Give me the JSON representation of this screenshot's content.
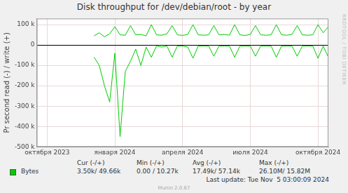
{
  "chart_data": {
    "type": "line",
    "title": "Disk throughput for /dev/debian/root - by year",
    "y_label": "Pr second read (-) / write (+)",
    "categories": [
      null,
      null,
      "октября 2023",
      null,
      null,
      null,
      null,
      null,
      null,
      null,
      null,
      null,
      null,
      null,
      null,
      "января 2024",
      null,
      null,
      null,
      null,
      null,
      null,
      null,
      null,
      null,
      null,
      null,
      null,
      "апреля 2024",
      null,
      null,
      null,
      null,
      null,
      null,
      null,
      null,
      null,
      null,
      null,
      null,
      "июля 2024",
      null,
      null,
      null,
      null,
      null,
      null,
      null,
      null,
      null,
      null,
      null,
      null,
      "октября 2024",
      null,
      null
    ],
    "series": [
      {
        "name": "Bytes",
        "color": "#00cc00",
        "values": [
          null,
          null,
          null,
          null,
          null,
          null,
          null,
          null,
          null,
          null,
          null,
          45000,
          60000,
          40000,
          55000,
          90000,
          50000,
          48000,
          95000,
          50000,
          52000,
          45000,
          100000,
          50000,
          48000,
          55000,
          95000,
          50000,
          47000,
          52000,
          100000,
          50000,
          48000,
          50000,
          95000,
          50000,
          52000,
          48000,
          100000,
          50000,
          47000,
          52000,
          95000,
          50000,
          48000,
          50000,
          100000,
          50000,
          48000,
          52000,
          95000,
          50000,
          48000,
          50000,
          100000,
          60000,
          90000
        ]
      },
      {
        "color": "#00cc00",
        "values": [
          null,
          null,
          null,
          null,
          null,
          null,
          null,
          null,
          null,
          null,
          null,
          -60000,
          -100000,
          -200000,
          -280000,
          -40000,
          -450000,
          -130000,
          -80000,
          -20000,
          -100000,
          -10000,
          -60000,
          -5000,
          -10000,
          -5000,
          -60000,
          -5000,
          -5000,
          -10000,
          -65000,
          -5000,
          -5000,
          -5000,
          -55000,
          -5000,
          -5000,
          -5000,
          -60000,
          -5000,
          -5000,
          -5000,
          -55000,
          -5000,
          -5000,
          -5000,
          -60000,
          -5000,
          -5000,
          -5000,
          -55000,
          -5000,
          -5000,
          -5000,
          -65000,
          -5000,
          -60000
        ]
      }
    ],
    "ylim": [
      -500000,
      130000
    ],
    "yticks": [
      {
        "value": 100000,
        "label": "100 k"
      },
      0,
      {
        "value": -100000,
        "label": "-100 k"
      },
      {
        "value": -200000,
        "label": "-200 k"
      },
      {
        "value": -300000,
        "label": "-300 k"
      },
      {
        "value": -400000,
        "label": "-400 k"
      },
      {
        "value": -500000,
        "label": "-500 k"
      }
    ],
    "grid": true,
    "legend_table": {
      "columns": [
        "Cur (-/+)",
        "Min (-/+)",
        "Avg (-/+)",
        "Max (-/+)"
      ],
      "rows": [
        [
          "3.50k/ 49.66k",
          "0.00 / 10.27k",
          "17.49k/ 57.14k",
          "26.10M/ 15.82M"
        ]
      ]
    },
    "last_update": "Last update: Tue Nov  5 03:00:09 2024",
    "footer": "Munin 2.0.67",
    "watermark": "RRDTOOL / TOBI OETIKER"
  }
}
